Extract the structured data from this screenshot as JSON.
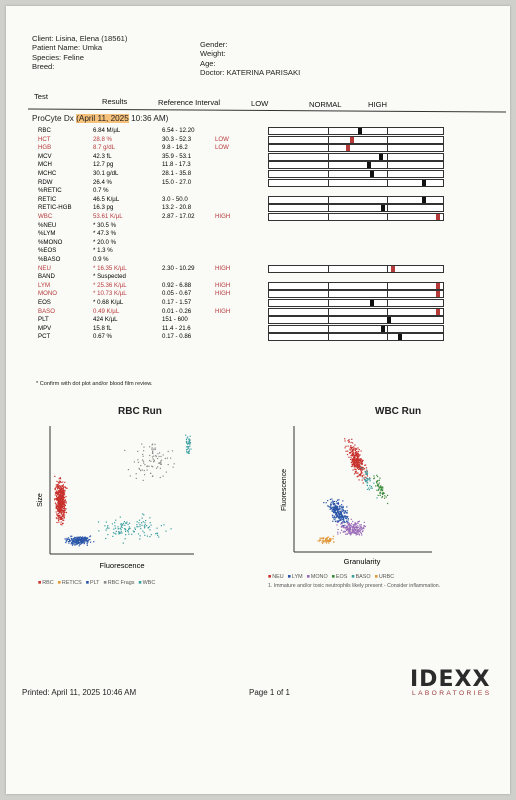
{
  "header": {
    "client_label": "Client:",
    "client": "Lisina, Elena (18561)",
    "patient_label": "Patient Name:",
    "patient": "Umka",
    "species_label": "Species:",
    "species": "Feline",
    "breed_label": "Breed:",
    "gender_label": "Gender:",
    "weight_label": "Weight:",
    "age_label": "Age:",
    "doctor_label": "Doctor:",
    "doctor": "KATERINA PARISAKI"
  },
  "columns": {
    "test": "Test",
    "results": "Results",
    "reference": "Reference Interval",
    "low": "LOW",
    "normal": "NORMAL",
    "high": "HIGH"
  },
  "section": {
    "title_prefix": "ProCyte Dx ",
    "title_date": "(April 11, 2025",
    "title_time": " 10:36 AM)"
  },
  "rows": [
    {
      "name": "RBC",
      "value": "6.84 M/µL",
      "ref": "6.54 - 12.20",
      "flag": "",
      "level": 0.53,
      "red": false
    },
    {
      "name": "HCT",
      "value": "28.8 %",
      "ref": "30.3 - 52.3",
      "flag": "LOW",
      "level": 0.48,
      "red": true
    },
    {
      "name": "HGB",
      "value": "8.7 g/dL",
      "ref": "9.8 - 16.2",
      "flag": "LOW",
      "level": 0.46,
      "red": true
    },
    {
      "name": "MCV",
      "value": "42.3 fL",
      "ref": "35.9 - 53.1",
      "flag": "",
      "level": 0.65
    },
    {
      "name": "MCH",
      "value": "12.7 pg",
      "ref": "11.8 - 17.3",
      "flag": "",
      "level": 0.58
    },
    {
      "name": "MCHC",
      "value": "30.1 g/dL",
      "ref": "28.1 - 35.8",
      "flag": "",
      "level": 0.6
    },
    {
      "name": "RDW",
      "value": "26.4 %",
      "ref": "15.0 - 27.0",
      "flag": "",
      "level": 0.9
    },
    {
      "name": "%RETIC",
      "value": "0.7 %",
      "ref": "",
      "flag": ""
    },
    {
      "name": "RETIC",
      "value": "46.5 K/µL",
      "ref": "3.0 - 50.0",
      "flag": "",
      "level": 0.9
    },
    {
      "name": "RETIC-HGB",
      "value": "16.3 pg",
      "ref": "13.2 - 20.8",
      "flag": "",
      "level": 0.66
    },
    {
      "name": "WBC",
      "value": "53.61 K/µL",
      "ref": "2.87 - 17.02",
      "flag": "HIGH",
      "level": 0.98,
      "red": true
    },
    {
      "name": "%NEU",
      "value": "* 30.5 %",
      "ref": "",
      "flag": ""
    },
    {
      "name": "%LYM",
      "value": "* 47.3 %",
      "ref": "",
      "flag": ""
    },
    {
      "name": "%MONO",
      "value": "* 20.0 %",
      "ref": "",
      "flag": ""
    },
    {
      "name": "%EOS",
      "value": "* 1.3 %",
      "ref": "",
      "flag": ""
    },
    {
      "name": "%BASO",
      "value": "0.9 %",
      "ref": "",
      "flag": ""
    },
    {
      "name": "NEU",
      "value": "* 16.35 K/µL",
      "ref": "2.30 - 10.29",
      "flag": "HIGH",
      "level": 0.72,
      "red": true,
      "name_red": true
    },
    {
      "name": "  BAND",
      "value": "* Suspected",
      "ref": "",
      "flag": ""
    },
    {
      "name": "LYM",
      "value": "* 25.36 K/µL",
      "ref": "0.92 - 6.88",
      "flag": "HIGH",
      "level": 0.98,
      "red": true,
      "name_red": true
    },
    {
      "name": "MONO",
      "value": "* 10.73 K/µL",
      "ref": "0.05 - 0.67",
      "flag": "HIGH",
      "level": 0.98,
      "red": true,
      "name_red": true
    },
    {
      "name": "EOS",
      "value": "* 0.68 K/µL",
      "ref": "0.17 - 1.57",
      "flag": "",
      "level": 0.6
    },
    {
      "name": "BASO",
      "value": "0.49 K/µL",
      "ref": "0.01 - 0.26",
      "flag": "HIGH",
      "level": 0.98,
      "red": true,
      "name_red": true
    },
    {
      "name": "PLT",
      "value": "424 K/µL",
      "ref": "151 - 600",
      "flag": "",
      "level": 0.7
    },
    {
      "name": "MPV",
      "value": "15.8 fL",
      "ref": "11.4 - 21.6",
      "flag": "",
      "level": 0.66
    },
    {
      "name": "PCT",
      "value": "0.67 %",
      "ref": "0.17 - 0.86",
      "flag": "",
      "level": 0.76
    }
  ],
  "confirm_note": "* Confirm with dot plot and/or blood film review.",
  "rbc_run": {
    "title": "RBC Run",
    "xlabel": "Fluorescence",
    "ylabel": "Size",
    "legend": [
      {
        "label": "RBC",
        "color": "#c8302c"
      },
      {
        "label": "RETICS",
        "color": "#e09a3a"
      },
      {
        "label": "PLT",
        "color": "#2a55a8"
      },
      {
        "label": "RBC Frags",
        "color": "#8a8a8a"
      },
      {
        "label": "WBC",
        "color": "#3aa0a0"
      }
    ]
  },
  "wbc_run": {
    "title": "WBC Run",
    "xlabel": "Granularity",
    "ylabel": "Fluorescence",
    "legend": [
      {
        "label": "NEU",
        "color": "#c8302c"
      },
      {
        "label": "LYM",
        "color": "#2a55a8"
      },
      {
        "label": "MONO",
        "color": "#9a6ab8"
      },
      {
        "label": "EOS",
        "color": "#3a8a3a"
      },
      {
        "label": "BASO",
        "color": "#3aa0a0"
      },
      {
        "label": "URBC",
        "color": "#e09a3a"
      }
    ],
    "note": "1. Immature and/or toxic neutrophils likely present - Consider inflammation."
  },
  "footer": {
    "printed": "Printed: April 11, 2025 10:46 AM",
    "page": "Page 1 of 1",
    "logo_main": "IDEXX",
    "logo_sub": "LABORATORIES"
  }
}
